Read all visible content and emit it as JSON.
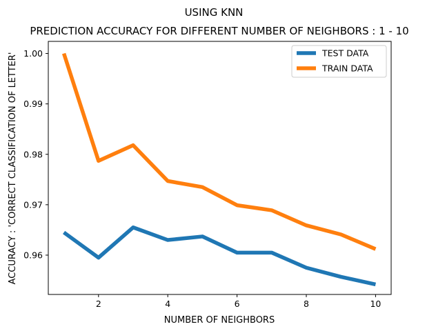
{
  "chart_data": {
    "type": "line",
    "suptitle": "USING KNN",
    "title": "PREDICTION ACCURACY FOR DIFFERENT NUMBER OF NEIGHBORS : 1 - 10",
    "xlabel": "NUMBER OF NEIGHBORS",
    "ylabel": "ACCURACY : 'CORRECT CLASSIFICATION OF LETTER'",
    "x": [
      1,
      2,
      3,
      4,
      5,
      6,
      7,
      8,
      9,
      10
    ],
    "xlim": [
      0.55,
      10.45
    ],
    "ylim": [
      0.9522,
      1.0024
    ],
    "xticks": [
      2,
      4,
      6,
      8,
      10
    ],
    "yticks": [
      0.96,
      0.97,
      0.98,
      0.99,
      1.0
    ],
    "ytick_labels": [
      "0.96",
      "0.97",
      "0.98",
      "0.99",
      "1.00"
    ],
    "grid": false,
    "legend_position": "top-right",
    "series": [
      {
        "name": "TEST DATA",
        "color": "#1f77b4",
        "values": [
          0.9645,
          0.9595,
          0.9655,
          0.963,
          0.9637,
          0.9605,
          0.9605,
          0.9575,
          0.9557,
          0.9542
        ]
      },
      {
        "name": "TRAIN DATA",
        "color": "#ff7f0e",
        "values": [
          1.0,
          0.9787,
          0.9818,
          0.9747,
          0.9735,
          0.9699,
          0.9689,
          0.9659,
          0.9641,
          0.9612
        ]
      }
    ]
  }
}
